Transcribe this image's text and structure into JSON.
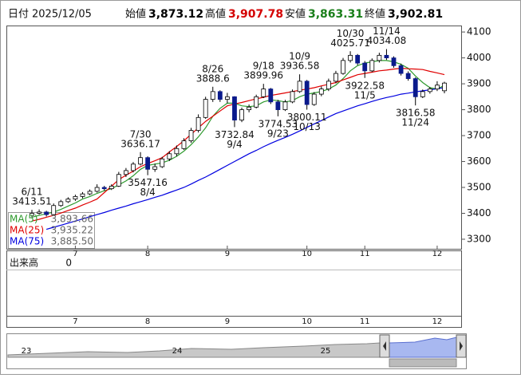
{
  "header": {
    "date_label": "日付",
    "date": "2025/12/05",
    "items": [
      {
        "label": "始値",
        "value": "3,873.12",
        "color": "#000000"
      },
      {
        "label": "高値",
        "value": "3,907.78",
        "color": "#d40000"
      },
      {
        "label": "安値",
        "value": "3,863.31",
        "color": "#1a7f1a"
      },
      {
        "label": "終値",
        "value": "3,902.81",
        "color": "#000000"
      }
    ]
  },
  "chart_data": {
    "type": "candlestick",
    "categories": [
      null,
      null,
      null,
      null,
      null,
      null,
      "7",
      null,
      null,
      null,
      null,
      null,
      null,
      null,
      null,
      null,
      "8",
      null,
      null,
      null,
      null,
      null,
      null,
      null,
      null,
      null,
      null,
      "9",
      null,
      null,
      null,
      null,
      null,
      null,
      null,
      null,
      null,
      null,
      "10",
      null,
      null,
      null,
      null,
      null,
      null,
      null,
      "11",
      null,
      null,
      null,
      null,
      null,
      null,
      null,
      null,
      null,
      "12",
      null
    ],
    "open": [
      3392,
      3400,
      3405,
      3395,
      3430,
      3445,
      3455,
      3465,
      3475,
      3485,
      3500,
      3495,
      3505,
      3550,
      3565,
      3590,
      3615,
      3570,
      3580,
      3610,
      3630,
      3650,
      3680,
      3720,
      3770,
      3840,
      3870,
      3840,
      3850,
      3760,
      3800,
      3810,
      3850,
      3880,
      3830,
      3800,
      3830,
      3870,
      3910,
      3820,
      3860,
      3880,
      3910,
      3940,
      3990,
      4010,
      3980,
      3950,
      3990,
      4010,
      4000,
      3970,
      3940,
      3920,
      3850,
      3870,
      3880,
      3873.12
    ],
    "high": [
      3413.51,
      3415,
      3410,
      3438,
      3452,
      3462,
      3472,
      3482,
      3492,
      3512,
      3506,
      3512,
      3560,
      3575,
      3598,
      3636.17,
      3620,
      3592,
      3618,
      3640,
      3662,
      3690,
      3730,
      3782,
      3850,
      3888.6,
      3875,
      3865,
      3852,
      3808,
      3820,
      3858,
      3899.96,
      3884,
      3838,
      3838,
      3878,
      3936.58,
      3915,
      3868,
      3890,
      3920,
      3950,
      4000,
      4025.71,
      4015,
      3988,
      3998,
      4020,
      4034.08,
      4006,
      3978,
      3948,
      3925,
      3878,
      3888,
      3910,
      3907.78
    ],
    "low": [
      3385,
      3395,
      3388,
      3392,
      3425,
      3440,
      3448,
      3458,
      3470,
      3480,
      3488,
      3490,
      3502,
      3540,
      3558,
      3585,
      3547.16,
      3560,
      3575,
      3602,
      3620,
      3645,
      3672,
      3712,
      3765,
      3830,
      3830,
      3825,
      3732.84,
      3752,
      3790,
      3805,
      3845,
      3822,
      3774.53,
      3795,
      3825,
      3865,
      3800.11,
      3815,
      3852,
      3872,
      3902,
      3935,
      3982,
      3972,
      3922.58,
      3945,
      3982,
      3992,
      3962,
      3932,
      3912,
      3816.58,
      3845,
      3862,
      3872,
      3863.31
    ],
    "close": [
      3400,
      3405,
      3395,
      3430,
      3445,
      3455,
      3465,
      3475,
      3485,
      3500,
      3495,
      3505,
      3550,
      3565,
      3590,
      3615,
      3570,
      3580,
      3610,
      3630,
      3650,
      3680,
      3720,
      3770,
      3840,
      3870,
      3840,
      3850,
      3760,
      3800,
      3810,
      3850,
      3880,
      3830,
      3800,
      3830,
      3870,
      3910,
      3820,
      3860,
      3880,
      3910,
      3940,
      3990,
      4010,
      3980,
      3950,
      3990,
      4010,
      4000,
      3970,
      3940,
      3920,
      3850,
      3870,
      3880,
      3895,
      3902.81
    ],
    "up_color": "#ffffff",
    "down_color": "#0a1a8c",
    "wick_color": "#000000",
    "series": [
      {
        "name": "MA(5)",
        "legend_value": "3,893.66",
        "color": "#2e9a2e",
        "values": [
          3385,
          3392,
          3398,
          3405,
          3415,
          3428,
          3440,
          3455,
          3465,
          3477,
          3487,
          3495,
          3510,
          3525,
          3545,
          3570,
          3585,
          3590,
          3595,
          3605,
          3620,
          3640,
          3665,
          3695,
          3730,
          3775,
          3805,
          3825,
          3825,
          3815,
          3812,
          3815,
          3830,
          3838,
          3835,
          3830,
          3835,
          3850,
          3860,
          3865,
          3870,
          3880,
          3895,
          3920,
          3950,
          3970,
          3980,
          3985,
          3990,
          3990,
          3985,
          3975,
          3960,
          3930,
          3905,
          3885,
          3880,
          3893.66
        ]
      },
      {
        "name": "MA(25)",
        "legend_value": "3,935.22",
        "color": "#e00000",
        "values": [
          3370,
          3377,
          3385,
          3392,
          3401,
          3411,
          3420,
          3432,
          3443,
          3455,
          3480,
          3505,
          3530,
          3547,
          3563,
          3580,
          3592,
          3603,
          3615,
          3637,
          3658,
          3680,
          3705,
          3730,
          3755,
          3775,
          3795,
          3815,
          3822,
          3828,
          3835,
          3842,
          3848,
          3855,
          3860,
          3865,
          3870,
          3875,
          3880,
          3885,
          3892,
          3898,
          3905,
          3915,
          3925,
          3935,
          3940,
          3945,
          3950,
          3953,
          3957,
          3960,
          3958,
          3957,
          3955,
          3948,
          3942,
          3935.22
        ]
      },
      {
        "name": "MA(75)",
        "legend_value": "3,885.50",
        "color": "#0000e0",
        "values": [
          null,
          null,
          3338,
          3346,
          3354,
          3362,
          3370,
          3378,
          3387,
          3395,
          3403,
          3412,
          3420,
          3428,
          3437,
          3445,
          3453,
          3462,
          3470,
          3480,
          3490,
          3500,
          3513,
          3527,
          3540,
          3555,
          3570,
          3585,
          3600,
          3615,
          3630,
          3643,
          3657,
          3670,
          3682,
          3693,
          3705,
          3718,
          3732,
          3745,
          3758,
          3772,
          3785,
          3795,
          3805,
          3815,
          3823,
          3832,
          3840,
          3847,
          3853,
          3860,
          3864,
          3869,
          3873,
          3877,
          3881,
          3885.5
        ]
      }
    ],
    "ylim": [
      3263,
      4125
    ],
    "yticks": [
      3300,
      3400,
      3500,
      3600,
      3700,
      3800,
      3900,
      4000,
      4100
    ],
    "grid": false,
    "annotations": [
      {
        "date": "6/11",
        "value": 3413.51
      },
      {
        "date": "7/30",
        "value": 3636.17
      },
      {
        "date": "8/4",
        "value": 3547.16
      },
      {
        "date": "8/26",
        "value": 3888.6
      },
      {
        "date": "9/4",
        "value": 3732.84
      },
      {
        "date": "9/18",
        "value": 3899.96
      },
      {
        "date": "9/23",
        "value": 3774.53
      },
      {
        "date": "10/9",
        "value": 3936.58
      },
      {
        "date": "10/13",
        "value": 3800.11
      },
      {
        "date": "10/30",
        "value": 4025.71
      },
      {
        "date": "11/5",
        "value": 3922.58
      },
      {
        "date": "11/14",
        "value": 4034.08
      },
      {
        "date": "11/24",
        "value": 3816.58
      }
    ],
    "volume": {
      "label": "出来高",
      "yticks": [
        0
      ]
    },
    "navigator_labels": [
      "23",
      "24",
      "25"
    ]
  }
}
